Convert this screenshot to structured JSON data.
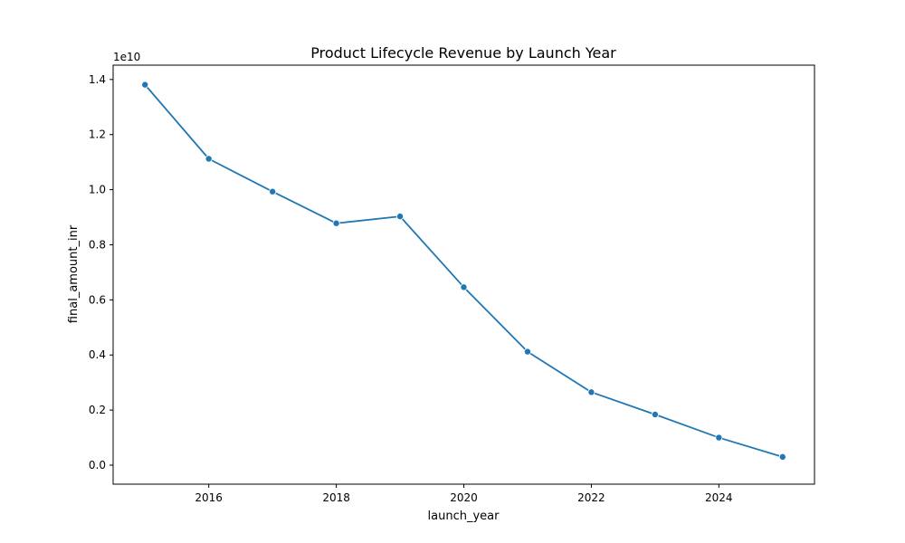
{
  "chart_data": {
    "type": "line",
    "title": "Product Lifecycle Revenue by Launch Year",
    "xlabel": "launch_year",
    "ylabel": "final_amount_inr",
    "y_offset_label": "1e10",
    "xlim": [
      2014.5,
      2025.5
    ],
    "ylim": [
      -0.069,
      1.452
    ],
    "y_scale_factor": 10000000000,
    "grid": false,
    "legend": "none",
    "x_ticks": [
      2016,
      2018,
      2020,
      2022,
      2024
    ],
    "x_tick_labels": [
      "2016",
      "2018",
      "2020",
      "2022",
      "2024"
    ],
    "y_ticks": [
      0.0,
      0.2,
      0.4,
      0.6,
      0.8,
      1.0,
      1.2,
      1.4
    ],
    "y_tick_labels": [
      "0.0",
      "0.2",
      "0.4",
      "0.6",
      "0.8",
      "1.0",
      "1.2",
      "1.4"
    ],
    "x": [
      2015,
      2016,
      2017,
      2018,
      2019,
      2020,
      2021,
      2022,
      2023,
      2024,
      2025
    ],
    "series": [
      {
        "values": [
          1.381,
          1.112,
          0.993,
          0.878,
          0.903,
          0.646,
          0.412,
          0.265,
          0.184,
          0.1,
          0.03
        ],
        "color": "#1f77b4",
        "marker": "circle"
      }
    ]
  }
}
